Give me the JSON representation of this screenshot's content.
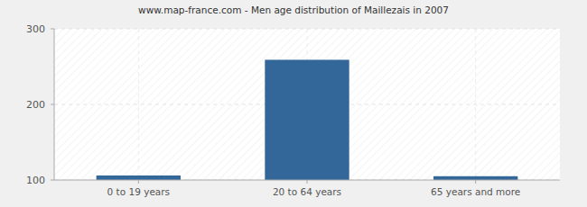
{
  "chart_data": {
    "type": "bar",
    "title": "www.map-france.com - Men age distribution of Maillezais in 2007",
    "categories": [
      "0 to 19 years",
      "20 to 64 years",
      "65 years and more"
    ],
    "values": [
      106,
      259,
      105
    ],
    "color": "#336699",
    "ylim": [
      100,
      300
    ],
    "yticks": [
      100,
      200,
      300
    ],
    "grid": true
  }
}
